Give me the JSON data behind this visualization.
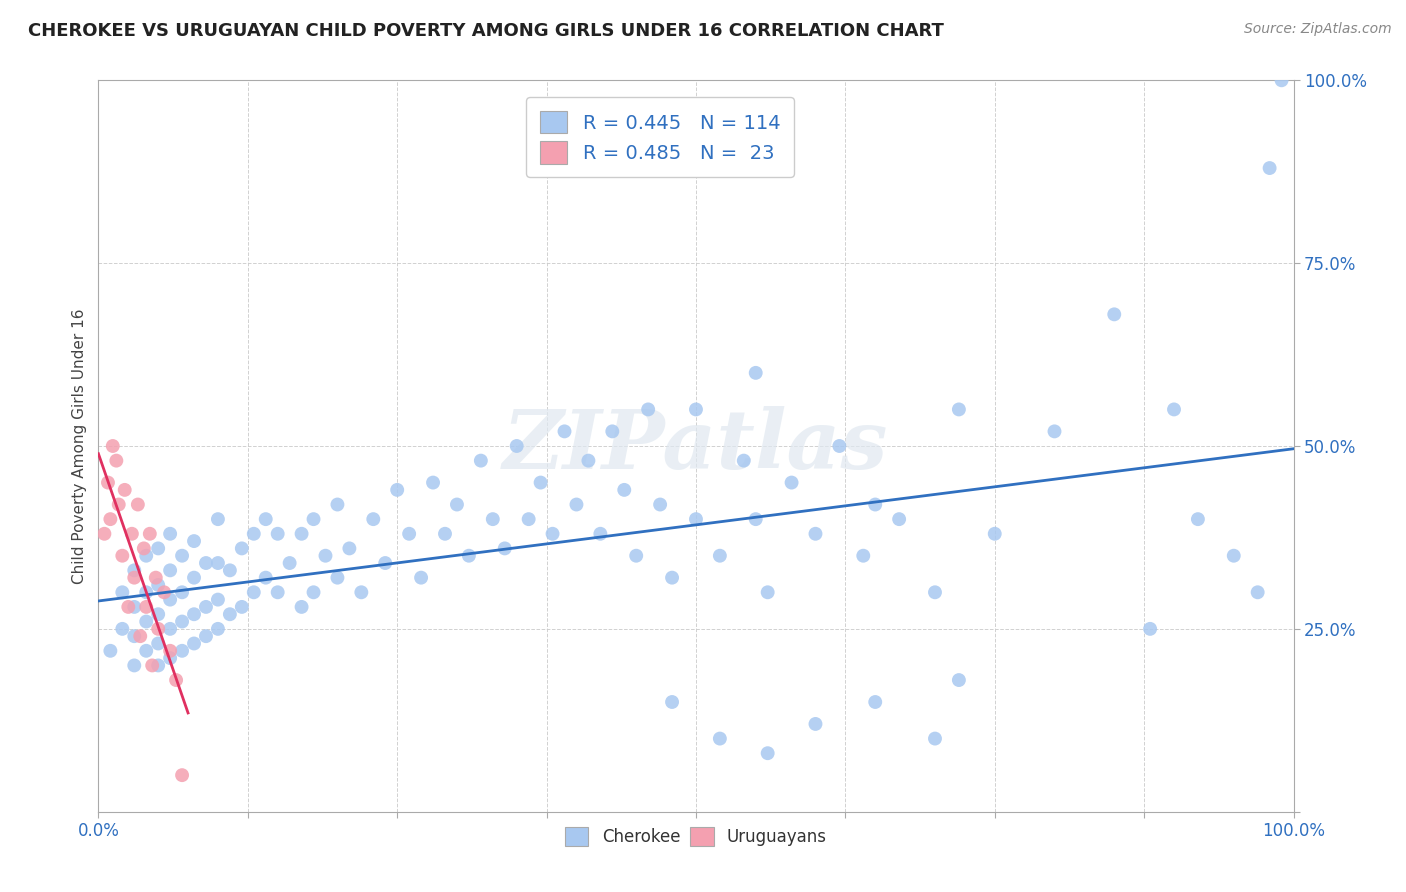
{
  "title": "CHEROKEE VS URUGUAYAN CHILD POVERTY AMONG GIRLS UNDER 16 CORRELATION CHART",
  "source": "Source: ZipAtlas.com",
  "ylabel": "Child Poverty Among Girls Under 16",
  "xlim": [
    0,
    1.0
  ],
  "ylim": [
    0,
    1.0
  ],
  "cherokee_R": 0.445,
  "cherokee_N": 114,
  "uruguayan_R": 0.485,
  "uruguayan_N": 23,
  "cherokee_color": "#a8c8f0",
  "uruguayan_color": "#f4a0b0",
  "cherokee_line_color": "#3070c0",
  "uruguayan_line_color": "#e03060",
  "background_color": "#ffffff",
  "grid_color": "#cccccc",
  "watermark": "ZIPatlas",
  "cherokee_x": [
    0.01,
    0.02,
    0.02,
    0.03,
    0.03,
    0.03,
    0.03,
    0.04,
    0.04,
    0.04,
    0.04,
    0.05,
    0.05,
    0.05,
    0.05,
    0.05,
    0.06,
    0.06,
    0.06,
    0.06,
    0.06,
    0.07,
    0.07,
    0.07,
    0.07,
    0.08,
    0.08,
    0.08,
    0.08,
    0.09,
    0.09,
    0.09,
    0.1,
    0.1,
    0.1,
    0.1,
    0.11,
    0.11,
    0.12,
    0.12,
    0.13,
    0.13,
    0.14,
    0.14,
    0.15,
    0.15,
    0.16,
    0.17,
    0.17,
    0.18,
    0.18,
    0.19,
    0.2,
    0.2,
    0.21,
    0.22,
    0.23,
    0.24,
    0.25,
    0.26,
    0.27,
    0.28,
    0.29,
    0.3,
    0.31,
    0.32,
    0.33,
    0.34,
    0.35,
    0.36,
    0.37,
    0.38,
    0.39,
    0.4,
    0.41,
    0.42,
    0.43,
    0.44,
    0.45,
    0.46,
    0.47,
    0.48,
    0.5,
    0.5,
    0.52,
    0.54,
    0.55,
    0.56,
    0.58,
    0.6,
    0.62,
    0.64,
    0.65,
    0.67,
    0.7,
    0.72,
    0.75,
    0.8,
    0.85,
    0.88,
    0.9,
    0.92,
    0.95,
    0.97,
    0.98,
    0.99,
    0.52,
    0.56,
    0.6,
    0.65,
    0.7,
    0.72,
    0.55,
    0.48
  ],
  "cherokee_y": [
    0.22,
    0.25,
    0.3,
    0.2,
    0.24,
    0.28,
    0.33,
    0.22,
    0.26,
    0.3,
    0.35,
    0.2,
    0.23,
    0.27,
    0.31,
    0.36,
    0.21,
    0.25,
    0.29,
    0.33,
    0.38,
    0.22,
    0.26,
    0.3,
    0.35,
    0.23,
    0.27,
    0.32,
    0.37,
    0.24,
    0.28,
    0.34,
    0.25,
    0.29,
    0.34,
    0.4,
    0.27,
    0.33,
    0.28,
    0.36,
    0.3,
    0.38,
    0.32,
    0.4,
    0.3,
    0.38,
    0.34,
    0.28,
    0.38,
    0.3,
    0.4,
    0.35,
    0.32,
    0.42,
    0.36,
    0.3,
    0.4,
    0.34,
    0.44,
    0.38,
    0.32,
    0.45,
    0.38,
    0.42,
    0.35,
    0.48,
    0.4,
    0.36,
    0.5,
    0.4,
    0.45,
    0.38,
    0.52,
    0.42,
    0.48,
    0.38,
    0.52,
    0.44,
    0.35,
    0.55,
    0.42,
    0.32,
    0.4,
    0.55,
    0.35,
    0.48,
    0.4,
    0.3,
    0.45,
    0.38,
    0.5,
    0.35,
    0.42,
    0.4,
    0.3,
    0.55,
    0.38,
    0.52,
    0.68,
    0.25,
    0.55,
    0.4,
    0.35,
    0.3,
    0.88,
    1.0,
    0.1,
    0.08,
    0.12,
    0.15,
    0.1,
    0.18,
    0.6,
    0.15
  ],
  "uruguayan_x": [
    0.005,
    0.008,
    0.01,
    0.012,
    0.015,
    0.017,
    0.02,
    0.022,
    0.025,
    0.028,
    0.03,
    0.033,
    0.035,
    0.038,
    0.04,
    0.043,
    0.045,
    0.048,
    0.05,
    0.055,
    0.06,
    0.065,
    0.07
  ],
  "uruguayan_y": [
    0.38,
    0.45,
    0.4,
    0.5,
    0.48,
    0.42,
    0.35,
    0.44,
    0.28,
    0.38,
    0.32,
    0.42,
    0.24,
    0.36,
    0.28,
    0.38,
    0.2,
    0.32,
    0.25,
    0.3,
    0.22,
    0.18,
    0.05
  ]
}
